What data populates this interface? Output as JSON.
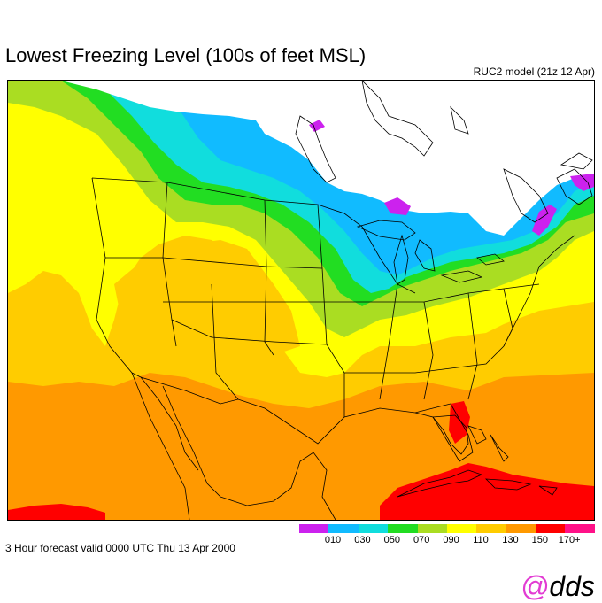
{
  "title": "Lowest Freezing Level (100s of feet MSL)",
  "model_label": "RUC2 model (21z 12 Apr)",
  "footer": "3 Hour forecast valid 0000 UTC Thu 13 Apr 2000",
  "brand": {
    "at": "@",
    "text": "dds"
  },
  "legend": {
    "colors": [
      "#cc22ee",
      "#cc22ee",
      "#11bbff",
      "#11bbff",
      "#11dddd",
      "#11dddd",
      "#22dd22",
      "#22dd22",
      "#aadd22",
      "#aadd22",
      "#ffff00",
      "#ffff00",
      "#ffcc00",
      "#ffcc00",
      "#ff9900",
      "#ff9900",
      "#ff0000",
      "#ff0000",
      "#ff1188",
      "#ff1188"
    ],
    "labels": [
      "010",
      "030",
      "050",
      "070",
      "090",
      "110",
      "130",
      "150",
      "170+"
    ]
  },
  "colors": {
    "magenta": "#cc22ee",
    "cyan": "#11bbff",
    "teal": "#11dddd",
    "green": "#22dd22",
    "lime": "#aadd22",
    "yellow": "#ffff00",
    "gold": "#ffcc00",
    "orange": "#ff9900",
    "red": "#ff0000"
  }
}
